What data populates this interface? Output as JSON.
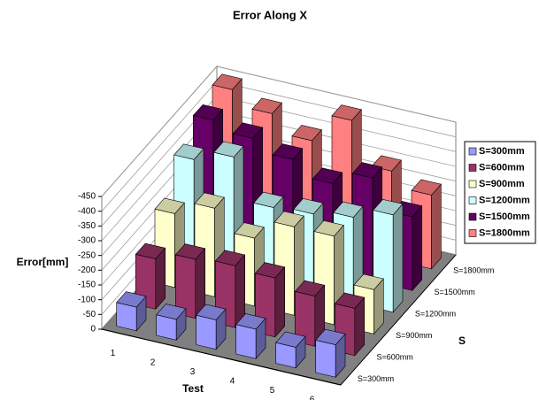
{
  "chart_data": {
    "type": "bar3d",
    "title": "Error Along X",
    "y_label": "Error[mm]",
    "x_label": "Test",
    "z_label": "S",
    "categories": [
      "1",
      "2",
      "3",
      "4",
      "5",
      "6"
    ],
    "ylim": [
      0,
      -450
    ],
    "yticks": [
      0,
      -50,
      -100,
      -150,
      -200,
      -250,
      -300,
      -350,
      -400,
      -450
    ],
    "grid": true,
    "legend": "right",
    "series": [
      {
        "name": "S=300mm",
        "color": "#9999ff",
        "values": [
          -80,
          -70,
          -100,
          -100,
          -70,
          -110
        ]
      },
      {
        "name": "S=600mm",
        "color": "#993366",
        "values": [
          -170,
          -200,
          -210,
          -200,
          -170,
          -160
        ]
      },
      {
        "name": "S=900mm",
        "color": "#ffffcc",
        "values": [
          -250,
          -300,
          -230,
          -300,
          -300,
          -150
        ]
      },
      {
        "name": "S=1200mm",
        "color": "#ccffff",
        "values": [
          -360,
          -400,
          -260,
          -270,
          -290,
          -330
        ]
      },
      {
        "name": "S=1500mm",
        "color": "#660066",
        "values": [
          -420,
          -390,
          -350,
          -300,
          -350,
          -250
        ]
      },
      {
        "name": "S=1800mm",
        "color": "#ff8080",
        "values": [
          -450,
          -400,
          -340,
          -440,
          -300,
          -250
        ]
      }
    ]
  }
}
